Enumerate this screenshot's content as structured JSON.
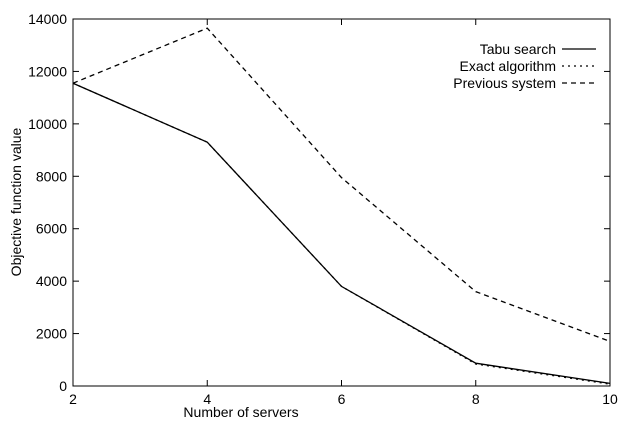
{
  "chart_data": {
    "type": "line",
    "title": "",
    "xlabel": "Number of servers",
    "ylabel": "Objective function value",
    "xlim": [
      2,
      10
    ],
    "ylim": [
      0,
      14000
    ],
    "xticks": [
      2,
      4,
      6,
      8,
      10
    ],
    "yticks": [
      0,
      2000,
      4000,
      6000,
      8000,
      10000,
      12000,
      14000
    ],
    "grid": false,
    "legend_position": "top-right",
    "series": [
      {
        "name": "Tabu search",
        "style": "solid",
        "color": "#000000",
        "x": [
          2,
          4,
          6,
          8,
          10
        ],
        "y": [
          11550,
          9300,
          3800,
          870,
          100
        ]
      },
      {
        "name": "Exact algorithm",
        "style": "dotted",
        "color": "#000000",
        "x": [
          2,
          4,
          6,
          8,
          10
        ],
        "y": [
          11550,
          9300,
          3800,
          840,
          70
        ]
      },
      {
        "name": "Previous system",
        "style": "dashed",
        "color": "#000000",
        "x": [
          2,
          4,
          6,
          8,
          10
        ],
        "y": [
          11550,
          13650,
          7950,
          3600,
          1700
        ]
      }
    ]
  }
}
